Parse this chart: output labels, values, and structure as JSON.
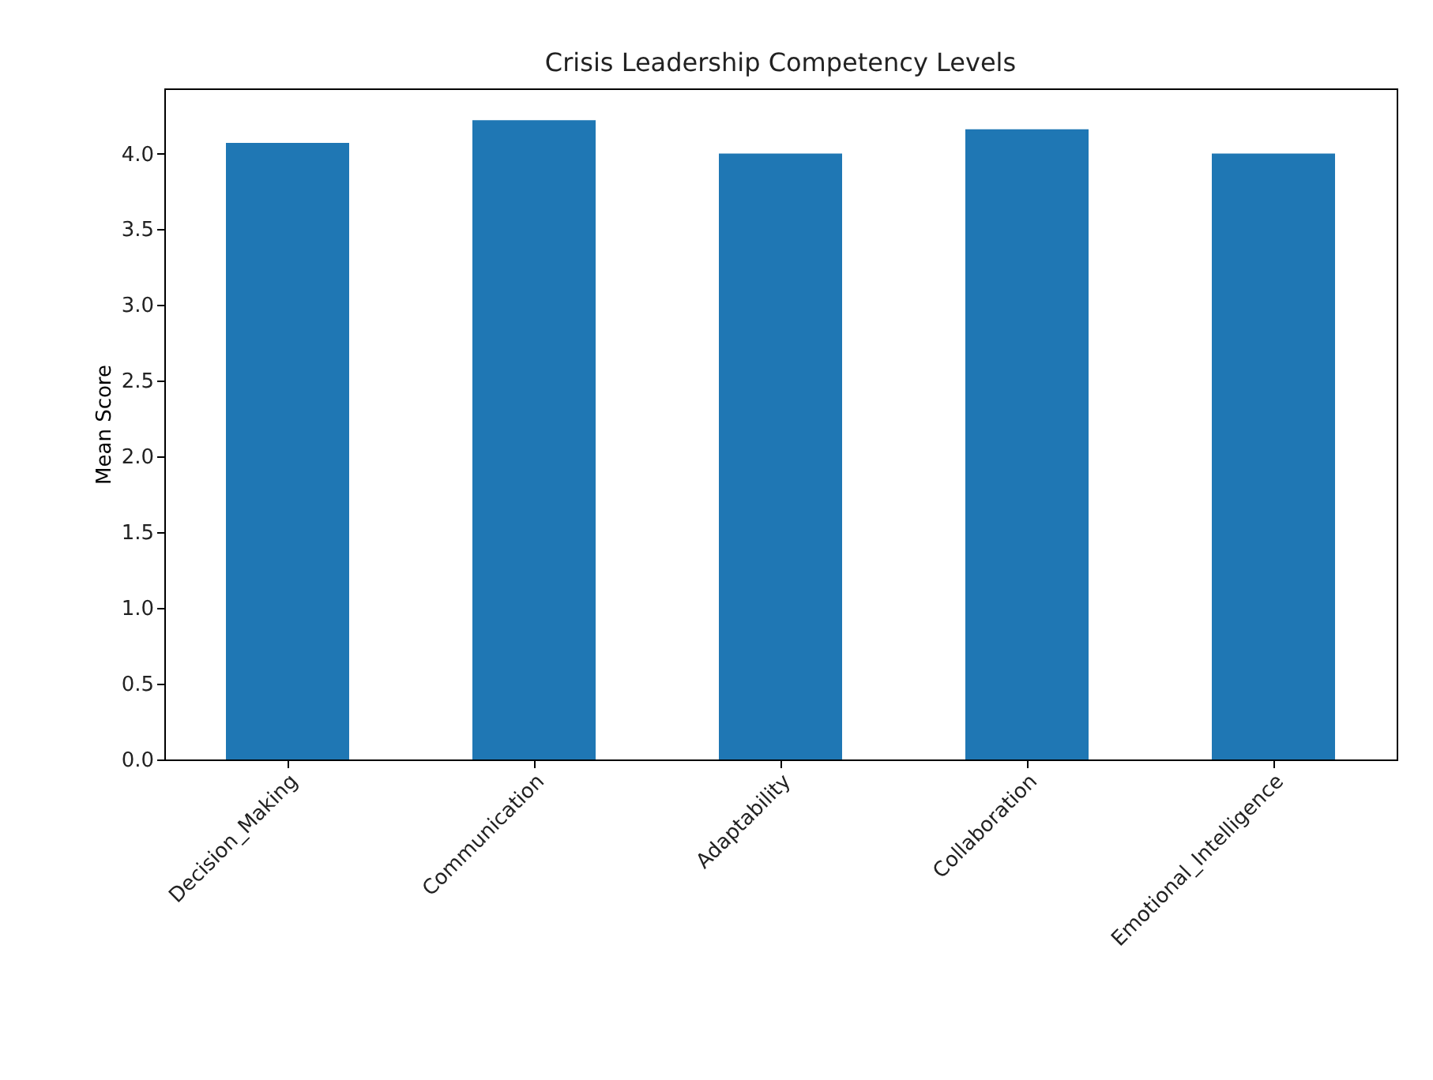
{
  "chart_data": {
    "type": "bar",
    "title": "Crisis Leadership Competency Levels",
    "ylabel": "Mean Score",
    "categories": [
      "Decision_Making",
      "Communication",
      "Adaptability",
      "Collaboration",
      "Emotional_Intelligence"
    ],
    "values": [
      4.07,
      4.22,
      4.0,
      4.16,
      4.0
    ],
    "color": "#1f77b4",
    "ylim": [
      0,
      4.43
    ],
    "yticks": [
      {
        "value": 0,
        "label": "0.0"
      },
      {
        "value": 0.5,
        "label": "0.5"
      },
      {
        "value": 1,
        "label": "1.0"
      },
      {
        "value": 1.5,
        "label": "1.5"
      },
      {
        "value": 2,
        "label": "2.0"
      },
      {
        "value": 2.5,
        "label": "2.5"
      },
      {
        "value": 3,
        "label": "3.0"
      },
      {
        "value": 3.5,
        "label": "3.5"
      },
      {
        "value": 4,
        "label": "4.0"
      }
    ],
    "grid": false
  }
}
